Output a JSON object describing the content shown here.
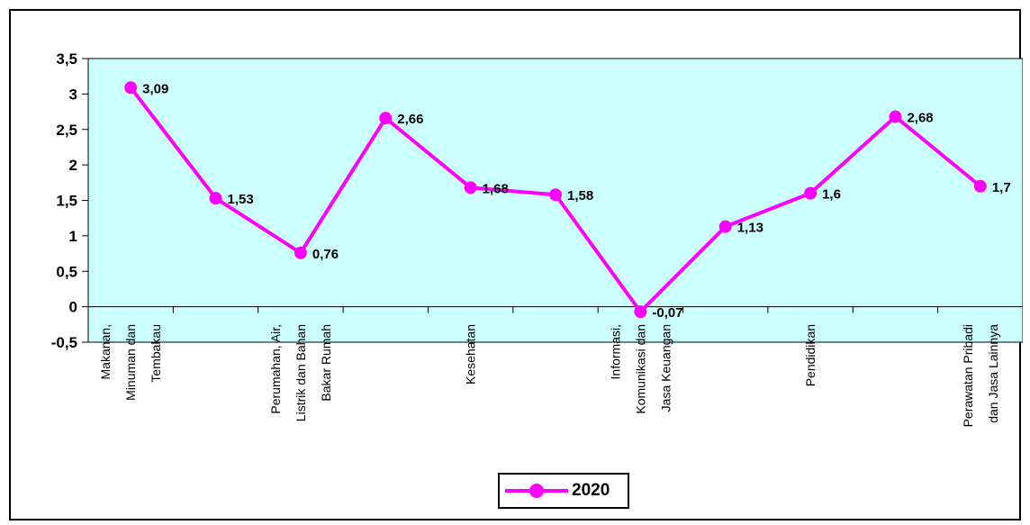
{
  "chart_data": {
    "type": "line",
    "categories": [
      "Makanan, Minuman dan Tembakau",
      "",
      "Perumahan, Air, Listrik dan Bahan Bakar Rumah",
      "",
      "Kesehatan",
      "",
      "Informasi, Komunikasi dan Jasa Keuangan",
      "",
      "Pendidikan",
      "",
      "Perawatan Pribadi dan Jasa Lainnya"
    ],
    "category_label_lines": [
      [
        "Makanan,",
        "Minuman dan",
        "Tembakau"
      ],
      [],
      [
        "Perumahan, Air,",
        "Listrik dan Bahan",
        "Bakar Rumah"
      ],
      [],
      [
        "Kesehatan"
      ],
      [],
      [
        "Informasi,",
        "Komunikasi dan",
        "Jasa Keuangan"
      ],
      [],
      [
        "Pendidikan"
      ],
      [],
      [
        "Perawatan Pribadi",
        "dan Jasa Lainnya"
      ]
    ],
    "series": [
      {
        "name": "2020",
        "values": [
          3.09,
          1.53,
          0.76,
          2.66,
          1.68,
          1.58,
          -0.07,
          1.13,
          1.6,
          2.68,
          1.7
        ],
        "labels": [
          "3,09",
          "1,53",
          "0,76",
          "2,66",
          "1,68",
          "1,58",
          "-0,07",
          "1,13",
          "1,6",
          "2,68",
          "1,7"
        ],
        "color": "#ff00ff"
      }
    ],
    "yticks": [
      3.5,
      3,
      2.5,
      2,
      1.5,
      1,
      0.5,
      0,
      -0.5
    ],
    "ytick_labels": [
      "3,5",
      "3",
      "2,5",
      "2",
      "1,5",
      "1",
      "0,5",
      "0",
      "-0,5"
    ],
    "ylim": [
      -0.5,
      3.5
    ],
    "title": "",
    "xlabel": "",
    "ylabel": "",
    "plot_background": "#ccffff",
    "grid": false,
    "legend": {
      "position": "bottom",
      "label": "2020"
    }
  }
}
